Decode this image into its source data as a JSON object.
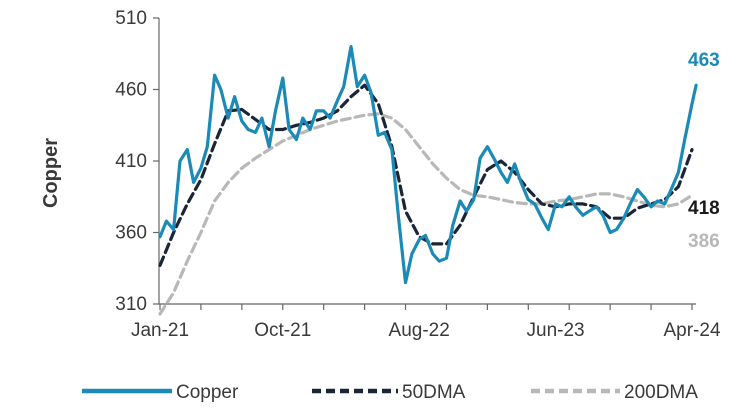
{
  "chart_data": {
    "type": "line",
    "ylabel": "Copper",
    "ylim": [
      310,
      510
    ],
    "yticks": [
      310,
      360,
      410,
      460,
      510
    ],
    "x_start": "2021-01",
    "x_end": "2024-04",
    "xtick_labels": [
      {
        "label": "Jan-21",
        "month": 0
      },
      {
        "label": "Oct-21",
        "month": 9
      },
      {
        "label": "Aug-22",
        "month": 19
      },
      {
        "label": "Jun-23",
        "month": 29
      },
      {
        "label": "Apr-24",
        "month": 39
      }
    ],
    "grid": false,
    "legend_position": "bottom",
    "colors": {
      "copper": "#1b8ab6",
      "dma50": "#1a2535",
      "dma200": "#b8b8b8"
    },
    "series": [
      {
        "name": "Copper",
        "style": "solid",
        "end_label": "463",
        "points": [
          [
            "2021-01",
            357
          ],
          [
            "2021-01-15",
            368
          ],
          [
            "2021-02",
            362
          ],
          [
            "2021-02-15",
            410
          ],
          [
            "2021-03",
            418
          ],
          [
            "2021-03-15",
            395
          ],
          [
            "2021-04",
            405
          ],
          [
            "2021-04-15",
            420
          ],
          [
            "2021-05",
            470
          ],
          [
            "2021-05-15",
            460
          ],
          [
            "2021-06",
            440
          ],
          [
            "2021-06-15",
            455
          ],
          [
            "2021-07",
            438
          ],
          [
            "2021-07-15",
            432
          ],
          [
            "2021-08",
            430
          ],
          [
            "2021-08-15",
            440
          ],
          [
            "2021-09",
            420
          ],
          [
            "2021-09-15",
            445
          ],
          [
            "2021-10",
            468
          ],
          [
            "2021-10-15",
            432
          ],
          [
            "2021-11",
            425
          ],
          [
            "2021-11-15",
            440
          ],
          [
            "2021-12",
            432
          ],
          [
            "2021-12-15",
            445
          ],
          [
            "2022-01",
            445
          ],
          [
            "2022-01-15",
            440
          ],
          [
            "2022-02",
            452
          ],
          [
            "2022-02-15",
            462
          ],
          [
            "2022-03",
            490
          ],
          [
            "2022-03-15",
            462
          ],
          [
            "2022-04",
            470
          ],
          [
            "2022-04-15",
            458
          ],
          [
            "2022-05",
            428
          ],
          [
            "2022-05-15",
            430
          ],
          [
            "2022-06",
            418
          ],
          [
            "2022-06-15",
            372
          ],
          [
            "2022-07",
            325
          ],
          [
            "2022-07-15",
            345
          ],
          [
            "2022-08",
            355
          ],
          [
            "2022-08-15",
            358
          ],
          [
            "2022-09",
            345
          ],
          [
            "2022-09-15",
            340
          ],
          [
            "2022-10",
            342
          ],
          [
            "2022-10-15",
            365
          ],
          [
            "2022-11",
            382
          ],
          [
            "2022-11-15",
            375
          ],
          [
            "2022-12",
            383
          ],
          [
            "2022-12-15",
            412
          ],
          [
            "2023-01",
            420
          ],
          [
            "2023-01-15",
            412
          ],
          [
            "2023-02",
            402
          ],
          [
            "2023-02-15",
            395
          ],
          [
            "2023-03",
            408
          ],
          [
            "2023-03-15",
            395
          ],
          [
            "2023-04",
            383
          ],
          [
            "2023-04-15",
            380
          ],
          [
            "2023-05",
            370
          ],
          [
            "2023-05-15",
            362
          ],
          [
            "2023-06",
            380
          ],
          [
            "2023-06-15",
            378
          ],
          [
            "2023-07",
            385
          ],
          [
            "2023-07-15",
            378
          ],
          [
            "2023-08",
            372
          ],
          [
            "2023-08-15",
            375
          ],
          [
            "2023-09",
            378
          ],
          [
            "2023-09-15",
            372
          ],
          [
            "2023-10",
            360
          ],
          [
            "2023-10-15",
            362
          ],
          [
            "2023-11",
            370
          ],
          [
            "2023-11-15",
            380
          ],
          [
            "2023-12",
            390
          ],
          [
            "2023-12-15",
            385
          ],
          [
            "2024-01",
            378
          ],
          [
            "2024-01-15",
            382
          ],
          [
            "2024-02",
            380
          ],
          [
            "2024-02-15",
            390
          ],
          [
            "2024-03",
            402
          ],
          [
            "2024-03-15",
            425
          ],
          [
            "2024-04",
            450
          ],
          [
            "2024-04-10",
            463
          ]
        ]
      },
      {
        "name": "50DMA",
        "style": "dashed",
        "end_label": "418",
        "points": [
          [
            "2021-01",
            337
          ],
          [
            "2021-02",
            360
          ],
          [
            "2021-03",
            380
          ],
          [
            "2021-04",
            397
          ],
          [
            "2021-05",
            422
          ],
          [
            "2021-06",
            445
          ],
          [
            "2021-07",
            446
          ],
          [
            "2021-08",
            439
          ],
          [
            "2021-09",
            432
          ],
          [
            "2021-10",
            432
          ],
          [
            "2021-11",
            435
          ],
          [
            "2021-12",
            437
          ],
          [
            "2022-01",
            440
          ],
          [
            "2022-02",
            445
          ],
          [
            "2022-03",
            455
          ],
          [
            "2022-04",
            463
          ],
          [
            "2022-05",
            450
          ],
          [
            "2022-06",
            420
          ],
          [
            "2022-07",
            375
          ],
          [
            "2022-08",
            357
          ],
          [
            "2022-09",
            352
          ],
          [
            "2022-10",
            352
          ],
          [
            "2022-11",
            365
          ],
          [
            "2022-12",
            385
          ],
          [
            "2023-01",
            404
          ],
          [
            "2023-02",
            410
          ],
          [
            "2023-03",
            402
          ],
          [
            "2023-04",
            390
          ],
          [
            "2023-05",
            380
          ],
          [
            "2023-06",
            378
          ],
          [
            "2023-07",
            380
          ],
          [
            "2023-08",
            380
          ],
          [
            "2023-09",
            378
          ],
          [
            "2023-10",
            370
          ],
          [
            "2023-11",
            370
          ],
          [
            "2023-12",
            377
          ],
          [
            "2024-01",
            380
          ],
          [
            "2024-02",
            383
          ],
          [
            "2024-03",
            392
          ],
          [
            "2024-04",
            418
          ]
        ]
      },
      {
        "name": "200DMA",
        "style": "dashed",
        "end_label": "386",
        "points": [
          [
            "2021-01",
            303
          ],
          [
            "2021-02",
            318
          ],
          [
            "2021-03",
            340
          ],
          [
            "2021-04",
            360
          ],
          [
            "2021-05",
            382
          ],
          [
            "2021-06",
            395
          ],
          [
            "2021-07",
            405
          ],
          [
            "2021-08",
            412
          ],
          [
            "2021-09",
            418
          ],
          [
            "2021-10",
            424
          ],
          [
            "2021-11",
            428
          ],
          [
            "2021-12",
            432
          ],
          [
            "2022-01",
            435
          ],
          [
            "2022-02",
            438
          ],
          [
            "2022-03",
            440
          ],
          [
            "2022-04",
            442
          ],
          [
            "2022-05",
            443
          ],
          [
            "2022-06",
            440
          ],
          [
            "2022-07",
            432
          ],
          [
            "2022-08",
            420
          ],
          [
            "2022-09",
            408
          ],
          [
            "2022-10",
            398
          ],
          [
            "2022-11",
            390
          ],
          [
            "2022-12",
            386
          ],
          [
            "2023-01",
            385
          ],
          [
            "2023-02",
            383
          ],
          [
            "2023-03",
            381
          ],
          [
            "2023-04",
            380
          ],
          [
            "2023-05",
            380
          ],
          [
            "2023-06",
            382
          ],
          [
            "2023-07",
            383
          ],
          [
            "2023-08",
            385
          ],
          [
            "2023-09",
            387
          ],
          [
            "2023-10",
            387
          ],
          [
            "2023-11",
            385
          ],
          [
            "2023-12",
            382
          ],
          [
            "2024-01",
            379
          ],
          [
            "2024-02",
            378
          ],
          [
            "2024-03",
            380
          ],
          [
            "2024-04",
            386
          ]
        ]
      }
    ]
  }
}
